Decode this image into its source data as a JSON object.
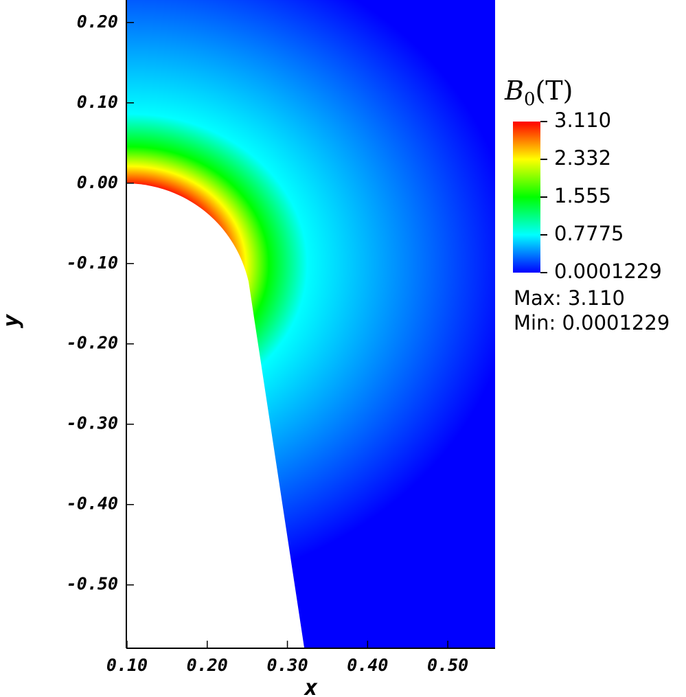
{
  "chart_data": {
    "type": "field",
    "x_label": "x",
    "y_label": "y",
    "xlim": [
      0.1,
      0.559
    ],
    "ylim": [
      -0.578,
      0.228
    ],
    "xticks": [
      {
        "value": 0.1,
        "label": "0.10"
      },
      {
        "value": 0.2,
        "label": "0.20"
      },
      {
        "value": 0.3,
        "label": "0.30"
      },
      {
        "value": 0.4,
        "label": "0.40"
      },
      {
        "value": 0.5,
        "label": "0.50"
      }
    ],
    "yticks": [
      {
        "value": 0.2,
        "label": "0.20"
      },
      {
        "value": 0.1,
        "label": "0.10"
      },
      {
        "value": 0,
        "label": "0.00"
      },
      {
        "value": -0.1,
        "label": "-0.10"
      },
      {
        "value": -0.2,
        "label": "-0.20"
      },
      {
        "value": -0.3,
        "label": "-0.30"
      },
      {
        "value": -0.4,
        "label": "-0.40"
      },
      {
        "value": -0.5,
        "label": "-0.50"
      }
    ],
    "colorbar": {
      "title": {
        "symbol": "B",
        "subscript": "0",
        "unit": "(T)"
      },
      "colors": [
        "#0000ff",
        "#00ffff",
        "#00ff00",
        "#ffff00",
        "#ff0000"
      ],
      "range": [
        0.0001229,
        3.11
      ],
      "ticks": [
        {
          "value": 3.11,
          "label": "3.110"
        },
        2.332,
        1.555,
        0.7775,
        0.0001229
      ],
      "stats": [
        "Max:  3.110",
        "Min:  0.0001229"
      ]
    }
  }
}
